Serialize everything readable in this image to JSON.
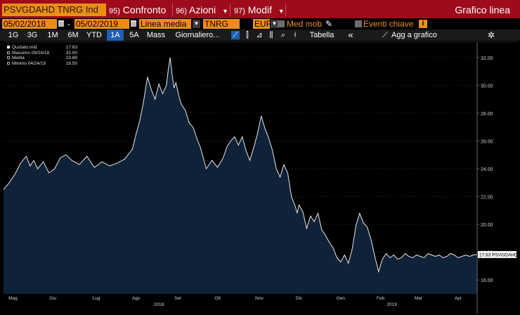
{
  "toolbar_top": {
    "ticker": "PSVGDAHD TNRG Ind",
    "buttons": [
      {
        "num": "95)",
        "label": "Confronto"
      },
      {
        "num": "96)",
        "label": "Azioni"
      },
      {
        "num": "97)",
        "label": "Modif"
      }
    ],
    "title": "Grafico linea"
  },
  "toolbar_options": {
    "date_from": "05/02/2018",
    "date_to": "05/02/2019",
    "separator": "-",
    "line_type": "Linea media",
    "field": "TNRG",
    "currency": "EUR",
    "moving_avg_label": "Med mob",
    "events_label": "Eventi chiave",
    "info_badge": "i"
  },
  "toolbar_periods": {
    "periods": [
      "1G",
      "3G",
      "1M",
      "6M",
      "YTD",
      "1A",
      "5A",
      "Mass"
    ],
    "active_period": "1A",
    "frequency": "Giornaliero...",
    "table_label": "Tabella",
    "back_label": "«",
    "add_label": "Agg a grafico"
  },
  "legend": {
    "rows": [
      {
        "label": "Quotato mid",
        "value": "17.83"
      },
      {
        "label": "Massimo 09/24/18",
        "value": "32.00"
      },
      {
        "label": "Media",
        "value": "23.89"
      },
      {
        "label": "Minimo 04/24/19",
        "value": "16.50"
      }
    ]
  },
  "colors": {
    "title_bar": "#9e0b1c",
    "accent_orange": "#e98f14",
    "active_blue": "#1f5fb4",
    "area_fill": "#0f2238",
    "line": "#e8e8e8"
  },
  "chart_data": {
    "type": "area",
    "last_value_label": "17.83 PSVGDAHD",
    "last_value": 17.83,
    "ylim": [
      15,
      33
    ],
    "yticks": [
      "16.00",
      "18.00",
      "20.00",
      "22.00",
      "24.00",
      "26.00",
      "28.00",
      "30.00",
      "32.00"
    ],
    "ytick_values": [
      16,
      18,
      20,
      22,
      24,
      26,
      28,
      30,
      32
    ],
    "month_labels": [
      "Mag",
      "Giu",
      "Lug",
      "Ago",
      "Set",
      "Ott",
      "Nov",
      "Dic",
      "Gen",
      "Feb",
      "Mar",
      "Apr"
    ],
    "year_labels": [
      "2018",
      "2019"
    ],
    "xlim": [
      0,
      250
    ],
    "month_positions": [
      5,
      26,
      49,
      70,
      92,
      113,
      135,
      156,
      178,
      199,
      219,
      240
    ],
    "year_positions": [
      82,
      205
    ],
    "x": [
      0,
      3,
      6,
      9,
      12,
      14,
      16,
      18,
      21,
      24,
      27,
      30,
      33,
      36,
      40,
      44,
      48,
      52,
      56,
      60,
      64,
      68,
      70,
      72,
      74,
      76,
      78,
      80,
      82,
      84,
      86,
      87,
      88,
      89,
      90,
      91,
      92,
      93,
      94,
      96,
      98,
      100,
      102,
      104,
      107,
      110,
      113,
      116,
      118,
      120,
      122,
      124,
      126,
      128,
      130,
      132,
      134,
      136,
      138,
      140,
      142,
      144,
      146,
      148,
      150,
      152,
      154,
      155,
      156,
      158,
      160,
      162,
      164,
      166,
      168,
      170,
      172,
      174,
      176,
      178,
      180,
      182,
      184,
      186,
      188,
      190,
      192,
      194,
      196,
      198,
      200,
      202,
      204,
      206,
      208,
      210,
      212,
      214,
      216,
      218,
      220,
      222,
      224,
      226,
      228,
      230,
      232,
      234,
      236,
      238,
      240,
      242,
      244,
      246,
      248,
      250
    ],
    "y": [
      22.5,
      23.0,
      23.6,
      24.4,
      24.9,
      24.2,
      24.6,
      24.0,
      24.5,
      23.7,
      24.0,
      24.8,
      25.0,
      24.6,
      24.3,
      24.9,
      24.1,
      24.5,
      24.2,
      24.4,
      24.7,
      25.4,
      26.5,
      27.5,
      28.9,
      30.6,
      29.7,
      29.0,
      30.1,
      29.4,
      30.0,
      31.2,
      32.0,
      30.8,
      29.8,
      30.2,
      29.6,
      29.0,
      28.6,
      28.2,
      27.3,
      27.0,
      26.2,
      25.5,
      24.0,
      24.6,
      24.1,
      24.8,
      25.6,
      26.0,
      26.3,
      25.7,
      26.3,
      25.3,
      24.6,
      25.5,
      26.5,
      27.8,
      26.9,
      26.2,
      25.3,
      24.0,
      23.4,
      24.3,
      23.7,
      22.0,
      21.3,
      20.8,
      21.4,
      20.9,
      19.7,
      20.6,
      20.2,
      20.8,
      19.6,
      19.2,
      18.7,
      18.3,
      17.6,
      17.3,
      17.8,
      17.2,
      18.2,
      19.9,
      20.8,
      20.1,
      19.8,
      18.9,
      17.7,
      16.6,
      17.5,
      17.9,
      17.6,
      17.8,
      17.5,
      17.6,
      17.9,
      17.7,
      17.6,
      17.8,
      17.7,
      17.6,
      17.9,
      17.8,
      17.7,
      17.8,
      17.6,
      17.7,
      17.9,
      17.8,
      17.6,
      17.7,
      17.8,
      17.7,
      17.8,
      17.83
    ]
  }
}
